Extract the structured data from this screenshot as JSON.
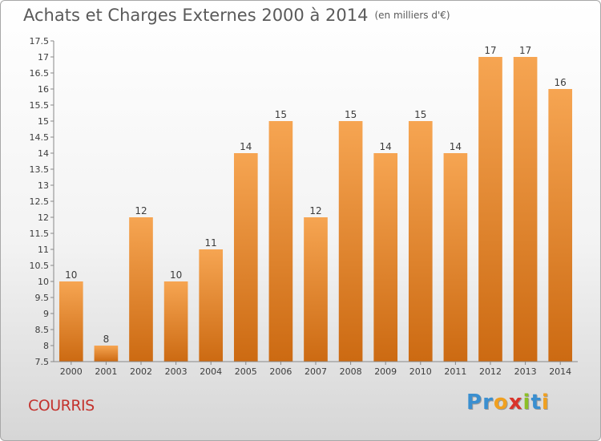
{
  "header": {
    "title": "Achats et Charges Externes 2000 à 2014",
    "unit": "(en milliers d'€)"
  },
  "footer": {
    "town": "COURRIS",
    "logo": {
      "letters": [
        "P",
        "r",
        "o",
        "x",
        "i",
        "t",
        "i"
      ],
      "colors": [
        "#3a8fd0",
        "#3a8fd0",
        "#f0a020",
        "#d9342b",
        "#8cbf26",
        "#3a8fd0",
        "#f0a020"
      ]
    }
  },
  "chart_data": {
    "type": "bar",
    "categories": [
      "2000",
      "2001",
      "2002",
      "2003",
      "2004",
      "2005",
      "2006",
      "2007",
      "2008",
      "2009",
      "2010",
      "2011",
      "2012",
      "2013",
      "2014"
    ],
    "values": [
      10,
      8,
      12,
      10,
      11,
      14,
      15,
      12,
      15,
      14,
      15,
      14,
      17,
      17,
      16
    ],
    "data_labels": [
      "10",
      "8",
      "12",
      "10",
      "11",
      "14",
      "15",
      "12",
      "15",
      "14",
      "15",
      "14",
      "17",
      "17",
      "16"
    ],
    "ylim": [
      7.5,
      17.5
    ],
    "yticks": [
      "7.5",
      "8",
      "8.5",
      "9",
      "9.5",
      "10",
      "10.5",
      "11",
      "11.5",
      "12",
      "12.5",
      "13",
      "13.5",
      "14",
      "14.5",
      "15",
      "15.5",
      "16",
      "16.5",
      "17",
      "17.5"
    ],
    "grid": false,
    "colors": {
      "bar_top": "#f6a552",
      "bar_bottom": "#cc6a12",
      "axis": "#888888"
    }
  }
}
